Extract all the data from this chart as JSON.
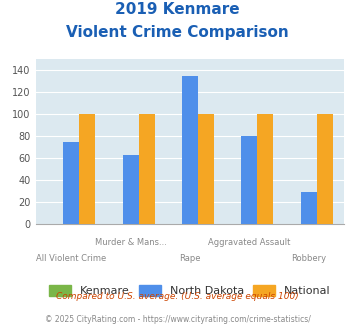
{
  "title_line1": "2019 Kenmare",
  "title_line2": "Violent Crime Comparison",
  "categories": [
    "All Violent Crime",
    "Murder & Mans...",
    "Rape",
    "Aggravated Assault",
    "Robbery"
  ],
  "top_labels": [
    "",
    "Murder & Mans...",
    "",
    "Aggravated Assault",
    ""
  ],
  "bottom_labels": [
    "All Violent Crime",
    "",
    "Rape",
    "",
    "Robbery"
  ],
  "kenmare": [
    0,
    0,
    0,
    0,
    0
  ],
  "north_dakota": [
    75,
    63,
    135,
    80,
    29
  ],
  "national": [
    100,
    100,
    100,
    100,
    100
  ],
  "bar_colors": {
    "kenmare": "#7ab648",
    "north_dakota": "#4f8fea",
    "national": "#f5a623"
  },
  "ylim": [
    0,
    150
  ],
  "yticks": [
    0,
    20,
    40,
    60,
    80,
    100,
    120,
    140
  ],
  "title_color": "#1a5fb4",
  "axis_bg_color": "#dce9f0",
  "fig_bg_color": "#ffffff",
  "legend_labels": [
    "Kenmare",
    "North Dakota",
    "National"
  ],
  "footnote1": "Compared to U.S. average. (U.S. average equals 100)",
  "footnote2": "© 2025 CityRating.com - https://www.cityrating.com/crime-statistics/",
  "footnote1_color": "#cc4400",
  "footnote2_color": "#888888"
}
